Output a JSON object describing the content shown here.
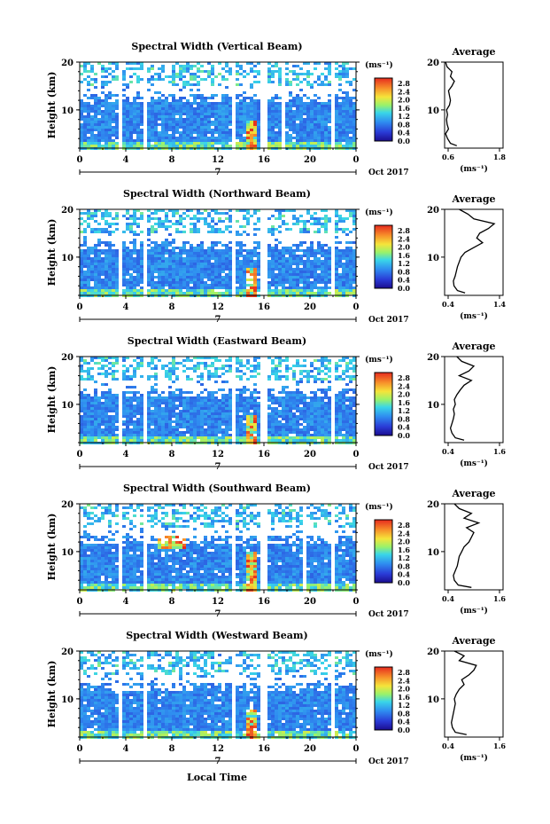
{
  "figure": {
    "bottom_xlabel": "Local Time",
    "date_label": "Oct 2017",
    "day_label": "7",
    "ylabel": "Height (km)",
    "colorbar_unit": "(ms⁻¹)",
    "colorbar_ticks": [
      "2.8",
      "2.4",
      "2.0",
      "1.6",
      "1.2",
      "0.8",
      "0.4",
      "0.0"
    ],
    "avg_title": "Average",
    "avg_xunit": "(ms⁻¹)"
  },
  "chart_data": [
    {
      "type": "heatmap",
      "title": "Spectral Width (Vertical Beam)",
      "xlabel": "",
      "ylabel": "Height (km)",
      "xticks": [
        "0",
        "4",
        "8",
        "12",
        "16",
        "20",
        "0"
      ],
      "yticks": [
        "20",
        "10"
      ],
      "xlim": [
        0,
        24
      ],
      "ylim": [
        2,
        20
      ],
      "colorbar": {
        "range": [
          0.0,
          3.0
        ],
        "unit": "(ms⁻¹)"
      },
      "data_gaps_hours": [
        [
          3.2,
          3.4
        ],
        [
          5.4,
          5.6
        ],
        [
          13.2,
          13.4
        ],
        [
          15.5,
          16.1
        ],
        [
          17.0,
          17.2
        ],
        [
          17.5,
          17.7
        ],
        [
          21.8,
          22.0
        ]
      ],
      "high_value_regions": [
        {
          "x": [
            14.2,
            15.2
          ],
          "y": [
            2,
            8
          ]
        }
      ],
      "average_profile": {
        "title": "Average",
        "xlim": [
          0.6,
          1.8
        ],
        "xticks": [
          "0.6",
          "1.8"
        ],
        "yticks": [
          "20",
          "10"
        ],
        "height_km": [
          2.5,
          3,
          4,
          5,
          6,
          7,
          8,
          9,
          10,
          11,
          12,
          13,
          14,
          15,
          16,
          17,
          18,
          19,
          20
        ],
        "width_ms": [
          0.85,
          0.72,
          0.66,
          0.62,
          0.68,
          0.65,
          0.64,
          0.66,
          0.64,
          0.7,
          0.72,
          0.7,
          0.68,
          0.75,
          0.8,
          0.72,
          0.75,
          0.65,
          0.62
        ]
      }
    },
    {
      "type": "heatmap",
      "title": "Spectral Width (Northward Beam)",
      "xlabel": "",
      "ylabel": "Height (km)",
      "xticks": [
        "0",
        "4",
        "8",
        "12",
        "16",
        "20",
        "0"
      ],
      "yticks": [
        "20",
        "10"
      ],
      "xlim": [
        0,
        24
      ],
      "ylim": [
        2,
        20
      ],
      "colorbar": {
        "range": [
          0.0,
          3.0
        ],
        "unit": "(ms⁻¹)"
      },
      "data_gaps_hours": [
        [
          3.2,
          3.4
        ],
        [
          5.4,
          5.6
        ],
        [
          13.2,
          13.4
        ],
        [
          15.5,
          16.1
        ],
        [
          17.0,
          17.2
        ],
        [
          21.8,
          22.0
        ]
      ],
      "high_value_regions": [
        {
          "x": [
            14.2,
            15.2
          ],
          "y": [
            2,
            8
          ]
        }
      ],
      "average_profile": {
        "title": "Average",
        "xlim": [
          0.4,
          1.4
        ],
        "xticks": [
          "0.4",
          "1.4"
        ],
        "yticks": [
          "20",
          "10"
        ],
        "height_km": [
          2.5,
          3,
          4,
          5,
          6,
          7,
          8,
          9,
          10,
          11,
          12,
          13,
          14,
          15,
          16,
          17,
          18,
          19,
          20
        ],
        "width_ms": [
          0.75,
          0.62,
          0.56,
          0.55,
          0.58,
          0.6,
          0.62,
          0.65,
          0.68,
          0.75,
          0.9,
          1.05,
          0.95,
          1.0,
          1.15,
          1.25,
          0.9,
          0.8,
          0.65
        ]
      }
    },
    {
      "type": "heatmap",
      "title": "Spectral Width (Eastward Beam)",
      "xlabel": "",
      "ylabel": "Height (km)",
      "xticks": [
        "0",
        "4",
        "8",
        "12",
        "16",
        "20",
        "0"
      ],
      "yticks": [
        "20",
        "10"
      ],
      "xlim": [
        0,
        24
      ],
      "ylim": [
        2,
        20
      ],
      "colorbar": {
        "range": [
          0.0,
          3.0
        ],
        "unit": "(ms⁻¹)"
      },
      "data_gaps_hours": [
        [
          3.2,
          3.4
        ],
        [
          5.4,
          5.6
        ],
        [
          13.2,
          13.4
        ],
        [
          15.5,
          16.1
        ],
        [
          17.0,
          17.2
        ],
        [
          21.8,
          22.0
        ]
      ],
      "high_value_regions": [
        {
          "x": [
            14.2,
            15.2
          ],
          "y": [
            2,
            8
          ]
        }
      ],
      "average_profile": {
        "title": "Average",
        "xlim": [
          0.4,
          1.6
        ],
        "xticks": [
          "0.4",
          "1.6"
        ],
        "yticks": [
          "20",
          "10"
        ],
        "height_km": [
          2.5,
          3,
          4,
          5,
          6,
          7,
          8,
          9,
          10,
          11,
          12,
          13,
          14,
          15,
          16,
          17,
          18,
          19,
          20
        ],
        "width_ms": [
          0.8,
          0.62,
          0.55,
          0.52,
          0.55,
          0.58,
          0.6,
          0.58,
          0.62,
          0.6,
          0.65,
          0.72,
          0.8,
          0.95,
          0.7,
          0.9,
          1.0,
          0.75,
          0.65
        ]
      }
    },
    {
      "type": "heatmap",
      "title": "Spectral Width (Southward Beam)",
      "xlabel": "",
      "ylabel": "Height (km)",
      "xticks": [
        "0",
        "4",
        "8",
        "12",
        "16",
        "20",
        "0"
      ],
      "yticks": [
        "20",
        "10"
      ],
      "xlim": [
        0,
        24
      ],
      "ylim": [
        2,
        20
      ],
      "colorbar": {
        "range": [
          0.0,
          3.0
        ],
        "unit": "(ms⁻¹)"
      },
      "data_gaps_hours": [
        [
          3.2,
          3.4
        ],
        [
          5.4,
          5.6
        ],
        [
          13.2,
          13.4
        ],
        [
          15.5,
          16.1
        ],
        [
          17.0,
          17.2
        ],
        [
          19.2,
          19.4
        ],
        [
          21.8,
          22.0
        ]
      ],
      "high_value_regions": [
        {
          "x": [
            14.2,
            15.2
          ],
          "y": [
            2,
            10
          ]
        },
        {
          "x": [
            6.5,
            9.0
          ],
          "y": [
            11,
            14
          ]
        }
      ],
      "average_profile": {
        "title": "Average",
        "xlim": [
          0.4,
          1.6
        ],
        "xticks": [
          "0.4",
          "1.6"
        ],
        "yticks": [
          "20",
          "10"
        ],
        "height_km": [
          2.5,
          3,
          4,
          5,
          6,
          7,
          8,
          9,
          10,
          11,
          12,
          13,
          14,
          15,
          16,
          17,
          18,
          19,
          20
        ],
        "width_ms": [
          0.95,
          0.68,
          0.6,
          0.58,
          0.62,
          0.66,
          0.68,
          0.7,
          0.75,
          0.8,
          0.9,
          0.95,
          1.0,
          0.85,
          1.1,
          0.8,
          0.95,
          0.7,
          0.6
        ]
      }
    },
    {
      "type": "heatmap",
      "title": "Spectral Width (Westward Beam)",
      "xlabel": "Local Time",
      "ylabel": "Height (km)",
      "xticks": [
        "0",
        "4",
        "8",
        "12",
        "16",
        "20",
        "0"
      ],
      "yticks": [
        "20",
        "10"
      ],
      "xlim": [
        0,
        24
      ],
      "ylim": [
        2,
        20
      ],
      "colorbar": {
        "range": [
          0.0,
          3.0
        ],
        "unit": "(ms⁻¹)"
      },
      "data_gaps_hours": [
        [
          3.2,
          3.4
        ],
        [
          5.4,
          5.6
        ],
        [
          13.2,
          13.4
        ],
        [
          15.5,
          16.1
        ],
        [
          17.0,
          17.2
        ],
        [
          21.8,
          22.0
        ]
      ],
      "high_value_regions": [
        {
          "x": [
            14.2,
            15.2
          ],
          "y": [
            2,
            8
          ]
        }
      ],
      "average_profile": {
        "title": "Average",
        "xlim": [
          0.4,
          1.6
        ],
        "xticks": [
          "0.4",
          "1.6"
        ],
        "yticks": [
          "20",
          "10"
        ],
        "height_km": [
          2.5,
          3,
          4,
          5,
          6,
          7,
          8,
          9,
          10,
          11,
          12,
          13,
          14,
          15,
          16,
          17,
          18,
          19,
          20
        ],
        "width_ms": [
          0.85,
          0.62,
          0.56,
          0.54,
          0.56,
          0.58,
          0.6,
          0.62,
          0.6,
          0.64,
          0.7,
          0.8,
          0.75,
          0.9,
          1.0,
          1.05,
          0.7,
          0.8,
          0.6
        ]
      }
    }
  ]
}
